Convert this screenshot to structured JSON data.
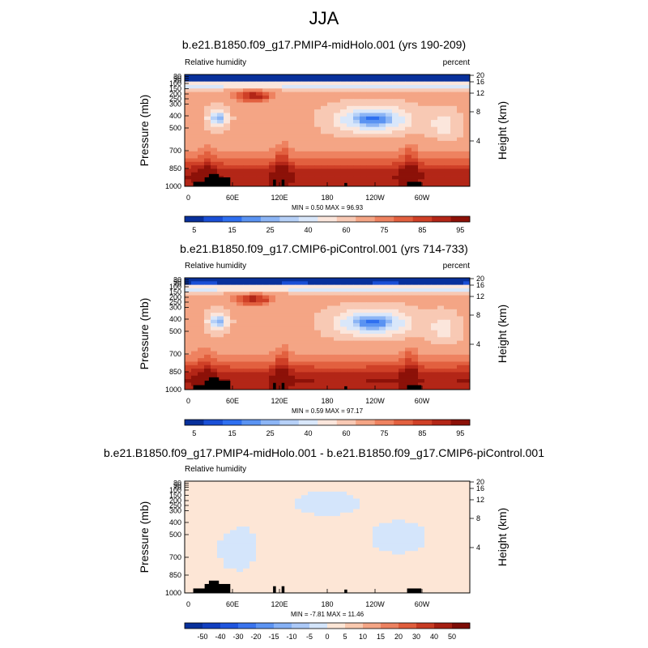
{
  "main_title": "JJA",
  "panels": [
    {
      "title": "b.e21.B1850.f09_g17.PMIP4-midHolo.001 (yrs 190-209)",
      "left_string": "Relative humidity",
      "right_string": "percent",
      "minmax": "MIN =   0.50   MAX =  96.93"
    },
    {
      "title": "b.e21.B1850.f09_g17.CMIP6-piControl.001 (yrs 714-733)",
      "left_string": "Relative humidity",
      "right_string": "percent",
      "minmax": "MIN =   0.59   MAX =  97.17"
    },
    {
      "title": "b.e21.B1850.f09_g17.PMIP4-midHolo.001 - b.e21.B1850.f09_g17.CMIP6-piControl.001",
      "left_string": "Relative humidity",
      "right_string": "",
      "minmax": "MIN =  -7.81   MAX =  11.46"
    }
  ],
  "colorbars": [
    {
      "labels": [
        "5",
        "15",
        "25",
        "40",
        "60",
        "75",
        "85",
        "95"
      ],
      "colors": [
        "#08309b",
        "#1a4fd6",
        "#2e6ff0",
        "#5a93f2",
        "#8cb5f5",
        "#b6d0f7",
        "#d9e7fa",
        "#fbe6dc",
        "#f8c9b4",
        "#f4a585",
        "#ee8260",
        "#e2603f",
        "#cf4027",
        "#b32617",
        "#8c1108"
      ]
    },
    {
      "labels": [
        "5",
        "15",
        "25",
        "40",
        "60",
        "75",
        "85",
        "95"
      ],
      "colors": [
        "#08309b",
        "#1a4fd6",
        "#2e6ff0",
        "#5a93f2",
        "#8cb5f5",
        "#b6d0f7",
        "#d9e7fa",
        "#fbe6dc",
        "#f8c9b4",
        "#f4a585",
        "#ee8260",
        "#e2603f",
        "#cf4027",
        "#b32617",
        "#8c1108"
      ]
    },
    {
      "labels": [
        "-50",
        "-40",
        "-30",
        "-20",
        "-15",
        "-10",
        "-5",
        "0",
        "5",
        "10",
        "15",
        "20",
        "30",
        "40",
        "50"
      ],
      "colors": [
        "#08309b",
        "#123fc0",
        "#1f55de",
        "#3a74ee",
        "#5d94f2",
        "#86b1f5",
        "#acc9f7",
        "#d4e5fb",
        "#fde6d6",
        "#f9c9af",
        "#f4a585",
        "#ec8160",
        "#df5d3c",
        "#c73b23",
        "#a51f12",
        "#7d0c06"
      ]
    }
  ],
  "chart_data": [
    {
      "type": "heatmap",
      "title": "b.e21.B1850.f09_g17.PMIP4-midHolo.001 (yrs 190-209)",
      "variable": "Relative humidity",
      "units": "percent",
      "xlabel": "",
      "ylabel": "Pressure (mb)",
      "y2label": "Height (km)",
      "x_ticks": [
        "0",
        "60E",
        "120E",
        "180",
        "120W",
        "60W"
      ],
      "y_ticks": [
        "30",
        "50",
        "70",
        "100",
        "150",
        "200",
        "250",
        "300",
        "400",
        "500",
        "700",
        "850",
        "1000"
      ],
      "y2_ticks": [
        "20",
        "16",
        "12",
        "8",
        "4"
      ],
      "min": 0.5,
      "max": 96.93,
      "levels": [
        5,
        10,
        15,
        20,
        25,
        30,
        40,
        50,
        60,
        70,
        75,
        80,
        85,
        90,
        95
      ]
    },
    {
      "type": "heatmap",
      "title": "b.e21.B1850.f09_g17.CMIP6-piControl.001 (yrs 714-733)",
      "variable": "Relative humidity",
      "units": "percent",
      "xlabel": "",
      "ylabel": "Pressure (mb)",
      "y2label": "Height (km)",
      "x_ticks": [
        "0",
        "60E",
        "120E",
        "180",
        "120W",
        "60W"
      ],
      "y_ticks": [
        "30",
        "50",
        "70",
        "100",
        "150",
        "200",
        "250",
        "300",
        "400",
        "500",
        "700",
        "850",
        "1000"
      ],
      "y2_ticks": [
        "20",
        "16",
        "12",
        "8",
        "4"
      ],
      "min": 0.59,
      "max": 97.17,
      "levels": [
        5,
        10,
        15,
        20,
        25,
        30,
        40,
        50,
        60,
        70,
        75,
        80,
        85,
        90,
        95
      ]
    },
    {
      "type": "heatmap",
      "title": "b.e21.B1850.f09_g17.PMIP4-midHolo.001 - b.e21.B1850.f09_g17.CMIP6-piControl.001",
      "variable": "Relative humidity",
      "units": "",
      "xlabel": "",
      "ylabel": "Pressure (mb)",
      "y2label": "Height (km)",
      "x_ticks": [
        "0",
        "60E",
        "120E",
        "180",
        "120W",
        "60W"
      ],
      "y_ticks": [
        "30",
        "50",
        "70",
        "100",
        "150",
        "200",
        "250",
        "300",
        "400",
        "500",
        "700",
        "850",
        "1000"
      ],
      "y2_ticks": [
        "20",
        "16",
        "12",
        "8",
        "4"
      ],
      "min": -7.81,
      "max": 11.46,
      "levels": [
        -50,
        -40,
        -30,
        -20,
        -15,
        -10,
        -5,
        0,
        5,
        10,
        15,
        20,
        30,
        40,
        50
      ]
    }
  ]
}
